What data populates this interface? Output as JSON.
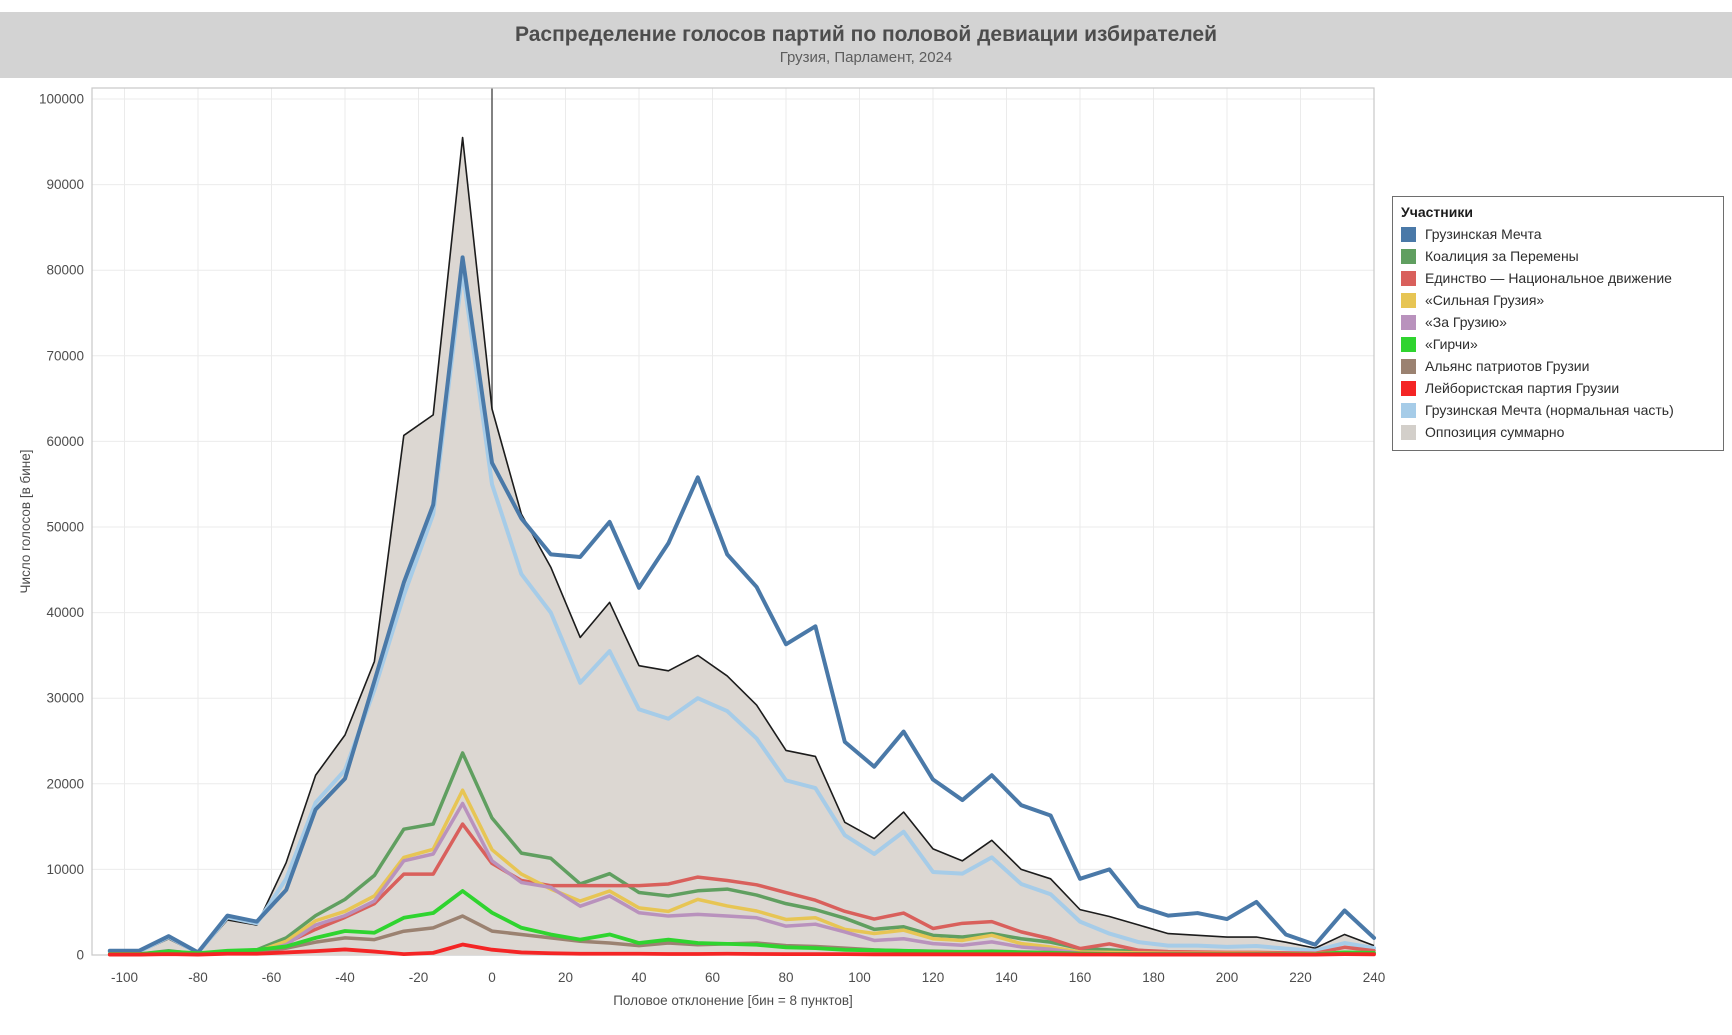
{
  "title": {
    "text": "Распределение голосов партий по половой девиации избирателей",
    "subtitle": "Грузия, Парламент, 2024",
    "band_color": "#d3d3d3"
  },
  "legend": {
    "title": "Участники"
  },
  "axes": {
    "x_label": "Половое отклонение [бин = 8 пунктов]",
    "y_label": "Число голосов [в бине]",
    "x_ticks": [
      -100,
      -80,
      -60,
      -40,
      -20,
      0,
      20,
      40,
      60,
      80,
      100,
      120,
      140,
      160,
      180,
      200,
      220,
      240
    ],
    "y_ticks": [
      0,
      10000,
      20000,
      30000,
      40000,
      50000,
      60000,
      70000,
      80000,
      90000,
      100000
    ],
    "grid_color": "#ebebeb",
    "zero_line_color": "#4d4d4d",
    "border_color": "#c8c8c8",
    "tick_color": "#4d4d4d"
  },
  "chart_data": {
    "type": "line",
    "title": "Распределение голосов партий по половой девиации избирателей",
    "subtitle": "Грузия, Парламент, 2024",
    "xlabel": "Половое отклонение [бин = 8 пунктов]",
    "ylabel": "Число голосов [в бине]",
    "xlim": [
      -108.8,
      240
    ],
    "ylim": [
      0,
      100000
    ],
    "grid": true,
    "legend_position": "right",
    "bin_width": 8,
    "x": [
      -104,
      -96,
      -88,
      -80,
      -72,
      -64,
      -56,
      -48,
      -40,
      -32,
      -24,
      -16,
      -8,
      0,
      8,
      16,
      24,
      32,
      40,
      48,
      56,
      64,
      72,
      80,
      88,
      96,
      104,
      112,
      120,
      128,
      136,
      144,
      152,
      160,
      168,
      176,
      184,
      192,
      200,
      208,
      216,
      224,
      232,
      240
    ],
    "draw_order": [
      9,
      8,
      0,
      1,
      2,
      3,
      4,
      6,
      5,
      7
    ],
    "series": [
      {
        "name": "Грузинская Мечта",
        "color": "#4a79a8",
        "width": 4,
        "kind": "line",
        "values": [
          500,
          500,
          2200,
          300,
          4600,
          3900,
          7600,
          17000,
          20600,
          32000,
          43500,
          52600,
          81500,
          57500,
          51000,
          46800,
          46500,
          50600,
          42900,
          48100,
          55800,
          46800,
          43000,
          36300,
          38400,
          24900,
          22000,
          26100,
          20500,
          18100,
          21000,
          17500,
          16300,
          8900,
          10000,
          5700,
          4600,
          4900,
          4200,
          6200,
          2400,
          1200,
          5200,
          2000
        ]
      },
      {
        "name": "Коалиция за Перемены",
        "color": "#609f60",
        "width": 3.5,
        "kind": "line",
        "values": [
          100,
          100,
          500,
          100,
          400,
          600,
          2000,
          4600,
          6500,
          9300,
          14700,
          15300,
          23600,
          16000,
          11900,
          11300,
          8300,
          9500,
          7300,
          6900,
          7500,
          7700,
          7000,
          6000,
          5300,
          4300,
          3000,
          3300,
          2300,
          2100,
          2500,
          1900,
          1500,
          750,
          600,
          400,
          300,
          300,
          250,
          250,
          200,
          150,
          300,
          200
        ]
      },
      {
        "name": "Единство — Национальное движение",
        "color": "#d9605c",
        "width": 3.5,
        "kind": "line",
        "values": [
          100,
          100,
          300,
          150,
          400,
          400,
          1400,
          3000,
          4400,
          6000,
          9450,
          9450,
          15300,
          10700,
          8700,
          8100,
          8100,
          8100,
          8100,
          8300,
          9100,
          8700,
          8200,
          7300,
          6400,
          5100,
          4200,
          4900,
          3100,
          3700,
          3900,
          2700,
          1900,
          750,
          1300,
          550,
          400,
          350,
          300,
          300,
          250,
          200,
          900,
          500
        ]
      },
      {
        "name": "«Сильная Грузия»",
        "color": "#e7c554",
        "width": 3.5,
        "kind": "line",
        "values": [
          100,
          100,
          300,
          100,
          300,
          400,
          1600,
          4000,
          5100,
          6900,
          11400,
          12350,
          19250,
          12300,
          9450,
          7700,
          6300,
          7480,
          5500,
          5100,
          6500,
          5730,
          5140,
          4150,
          4350,
          3000,
          2510,
          2900,
          1900,
          1700,
          2300,
          1330,
          940,
          350,
          300,
          250,
          200,
          200,
          200,
          200,
          150,
          150,
          300,
          200
        ]
      },
      {
        "name": "«За Грузию»",
        "color": "#b992bd",
        "width": 3.5,
        "kind": "line",
        "values": [
          100,
          100,
          200,
          100,
          300,
          300,
          1200,
          3500,
          4600,
          6300,
          11000,
          11800,
          17700,
          11000,
          8470,
          7900,
          5700,
          6900,
          4940,
          4550,
          4740,
          4550,
          4350,
          3370,
          3600,
          2700,
          1700,
          1900,
          1330,
          1140,
          1530,
          940,
          670,
          200,
          150,
          150,
          120,
          120,
          100,
          150,
          100,
          100,
          200,
          150
        ]
      },
      {
        "name": "«Гирчи»",
        "color": "#2fd42f",
        "width": 3.8,
        "kind": "line",
        "values": [
          100,
          100,
          400,
          200,
          500,
          600,
          1000,
          2000,
          2800,
          2600,
          4350,
          4900,
          7480,
          4940,
          3180,
          2400,
          1800,
          2400,
          1400,
          1800,
          1400,
          1300,
          1200,
          900,
          800,
          600,
          550,
          500,
          400,
          350,
          400,
          300,
          250,
          150,
          120,
          100,
          100,
          100,
          100,
          100,
          100,
          100,
          300,
          250
        ]
      },
      {
        "name": "Альянс патриотов Грузии",
        "color": "#9b8271",
        "width": 3.5,
        "kind": "line",
        "values": [
          50,
          50,
          200,
          100,
          300,
          300,
          800,
          1500,
          2000,
          1800,
          2780,
          3170,
          4550,
          2790,
          2400,
          2000,
          1600,
          1400,
          1100,
          1400,
          1200,
          1300,
          1400,
          1100,
          1000,
          800,
          600,
          500,
          450,
          400,
          450,
          350,
          300,
          200,
          150,
          150,
          120,
          120,
          100,
          100,
          100,
          80,
          150,
          100
        ]
      },
      {
        "name": "Лейбористская партия Грузии",
        "color": "#f42525",
        "width": 3.8,
        "kind": "line",
        "values": [
          50,
          50,
          100,
          50,
          150,
          150,
          300,
          450,
          650,
          400,
          100,
          250,
          1220,
          620,
          300,
          200,
          150,
          150,
          150,
          120,
          120,
          150,
          120,
          100,
          100,
          100,
          80,
          80,
          80,
          80,
          80,
          80,
          80,
          60,
          60,
          50,
          50,
          50,
          50,
          50,
          50,
          50,
          100,
          80
        ]
      },
      {
        "name": "Грузинская Мечта (нормальная часть)",
        "color": "#a6cce8",
        "width": 4,
        "kind": "line",
        "values": [
          400,
          400,
          2100,
          250,
          4400,
          3700,
          8900,
          17800,
          21600,
          31000,
          42000,
          51500,
          80000,
          55000,
          44500,
          40000,
          31800,
          35500,
          28700,
          27600,
          30000,
          28500,
          25300,
          20400,
          19500,
          14000,
          11800,
          14400,
          9700,
          9500,
          11400,
          8300,
          7100,
          3900,
          2500,
          1500,
          1100,
          1100,
          950,
          1050,
          750,
          500,
          1400,
          800
        ]
      },
      {
        "name": "Оппозиция суммарно",
        "color": "#d3cfca",
        "fill": "#dcd7d2",
        "stroke": "#1c1c1c",
        "width": 1.6,
        "kind": "area",
        "values": [
          300,
          300,
          1900,
          150,
          4100,
          3500,
          10800,
          21000,
          25700,
          34300,
          60700,
          63100,
          95500,
          63800,
          51500,
          45300,
          37100,
          41200,
          33800,
          33200,
          35000,
          32600,
          29200,
          23900,
          23200,
          15500,
          13600,
          16700,
          12400,
          11000,
          13400,
          10000,
          8900,
          5300,
          4500,
          3500,
          2500,
          2300,
          2100,
          2100,
          1500,
          800,
          2400,
          1100
        ]
      }
    ]
  }
}
